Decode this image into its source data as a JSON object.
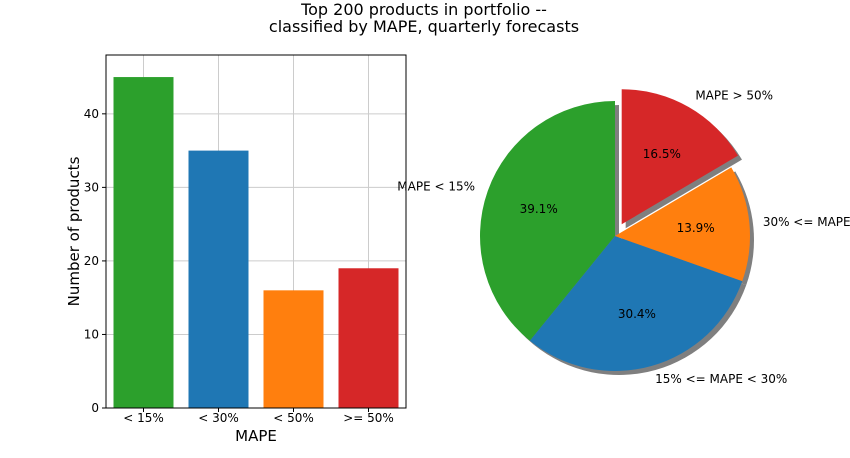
{
  "figure": {
    "title_line1": "Top 200 products in portfolio --",
    "title_line2": "classified by MAPE, quarterly forecasts"
  },
  "colors": {
    "green": "#2ca02c",
    "blue": "#1f77b4",
    "orange": "#ff7f0e",
    "red": "#d62728",
    "grid": "#cccccc",
    "shadow": "#7f7f7f"
  },
  "chart_data": [
    {
      "type": "bar",
      "xlabel": "MAPE",
      "ylabel": "Number of products",
      "categories": [
        "< 15%",
        "< 30%",
        "< 50%",
        ">= 50%"
      ],
      "values": [
        45,
        35,
        16,
        19
      ],
      "colors": [
        "#2ca02c",
        "#1f77b4",
        "#ff7f0e",
        "#d62728"
      ],
      "ylim": [
        0,
        48
      ],
      "yticks": [
        0,
        10,
        20,
        30,
        40
      ],
      "grid": true
    },
    {
      "type": "pie",
      "labels": [
        "MAPE < 15%",
        "15% <= MAPE < 30%",
        "30% <= MAPE",
        "MAPE > 50%"
      ],
      "values": [
        39.1,
        30.4,
        13.9,
        16.5
      ],
      "pct_labels": [
        "39.1%",
        "30.4%",
        "13.9%",
        "16.5%"
      ],
      "colors": [
        "#2ca02c",
        "#1f77b4",
        "#ff7f0e",
        "#d62728"
      ],
      "explode": [
        0,
        0,
        0,
        0.1
      ],
      "shadow": true,
      "start_angle": 90
    }
  ]
}
